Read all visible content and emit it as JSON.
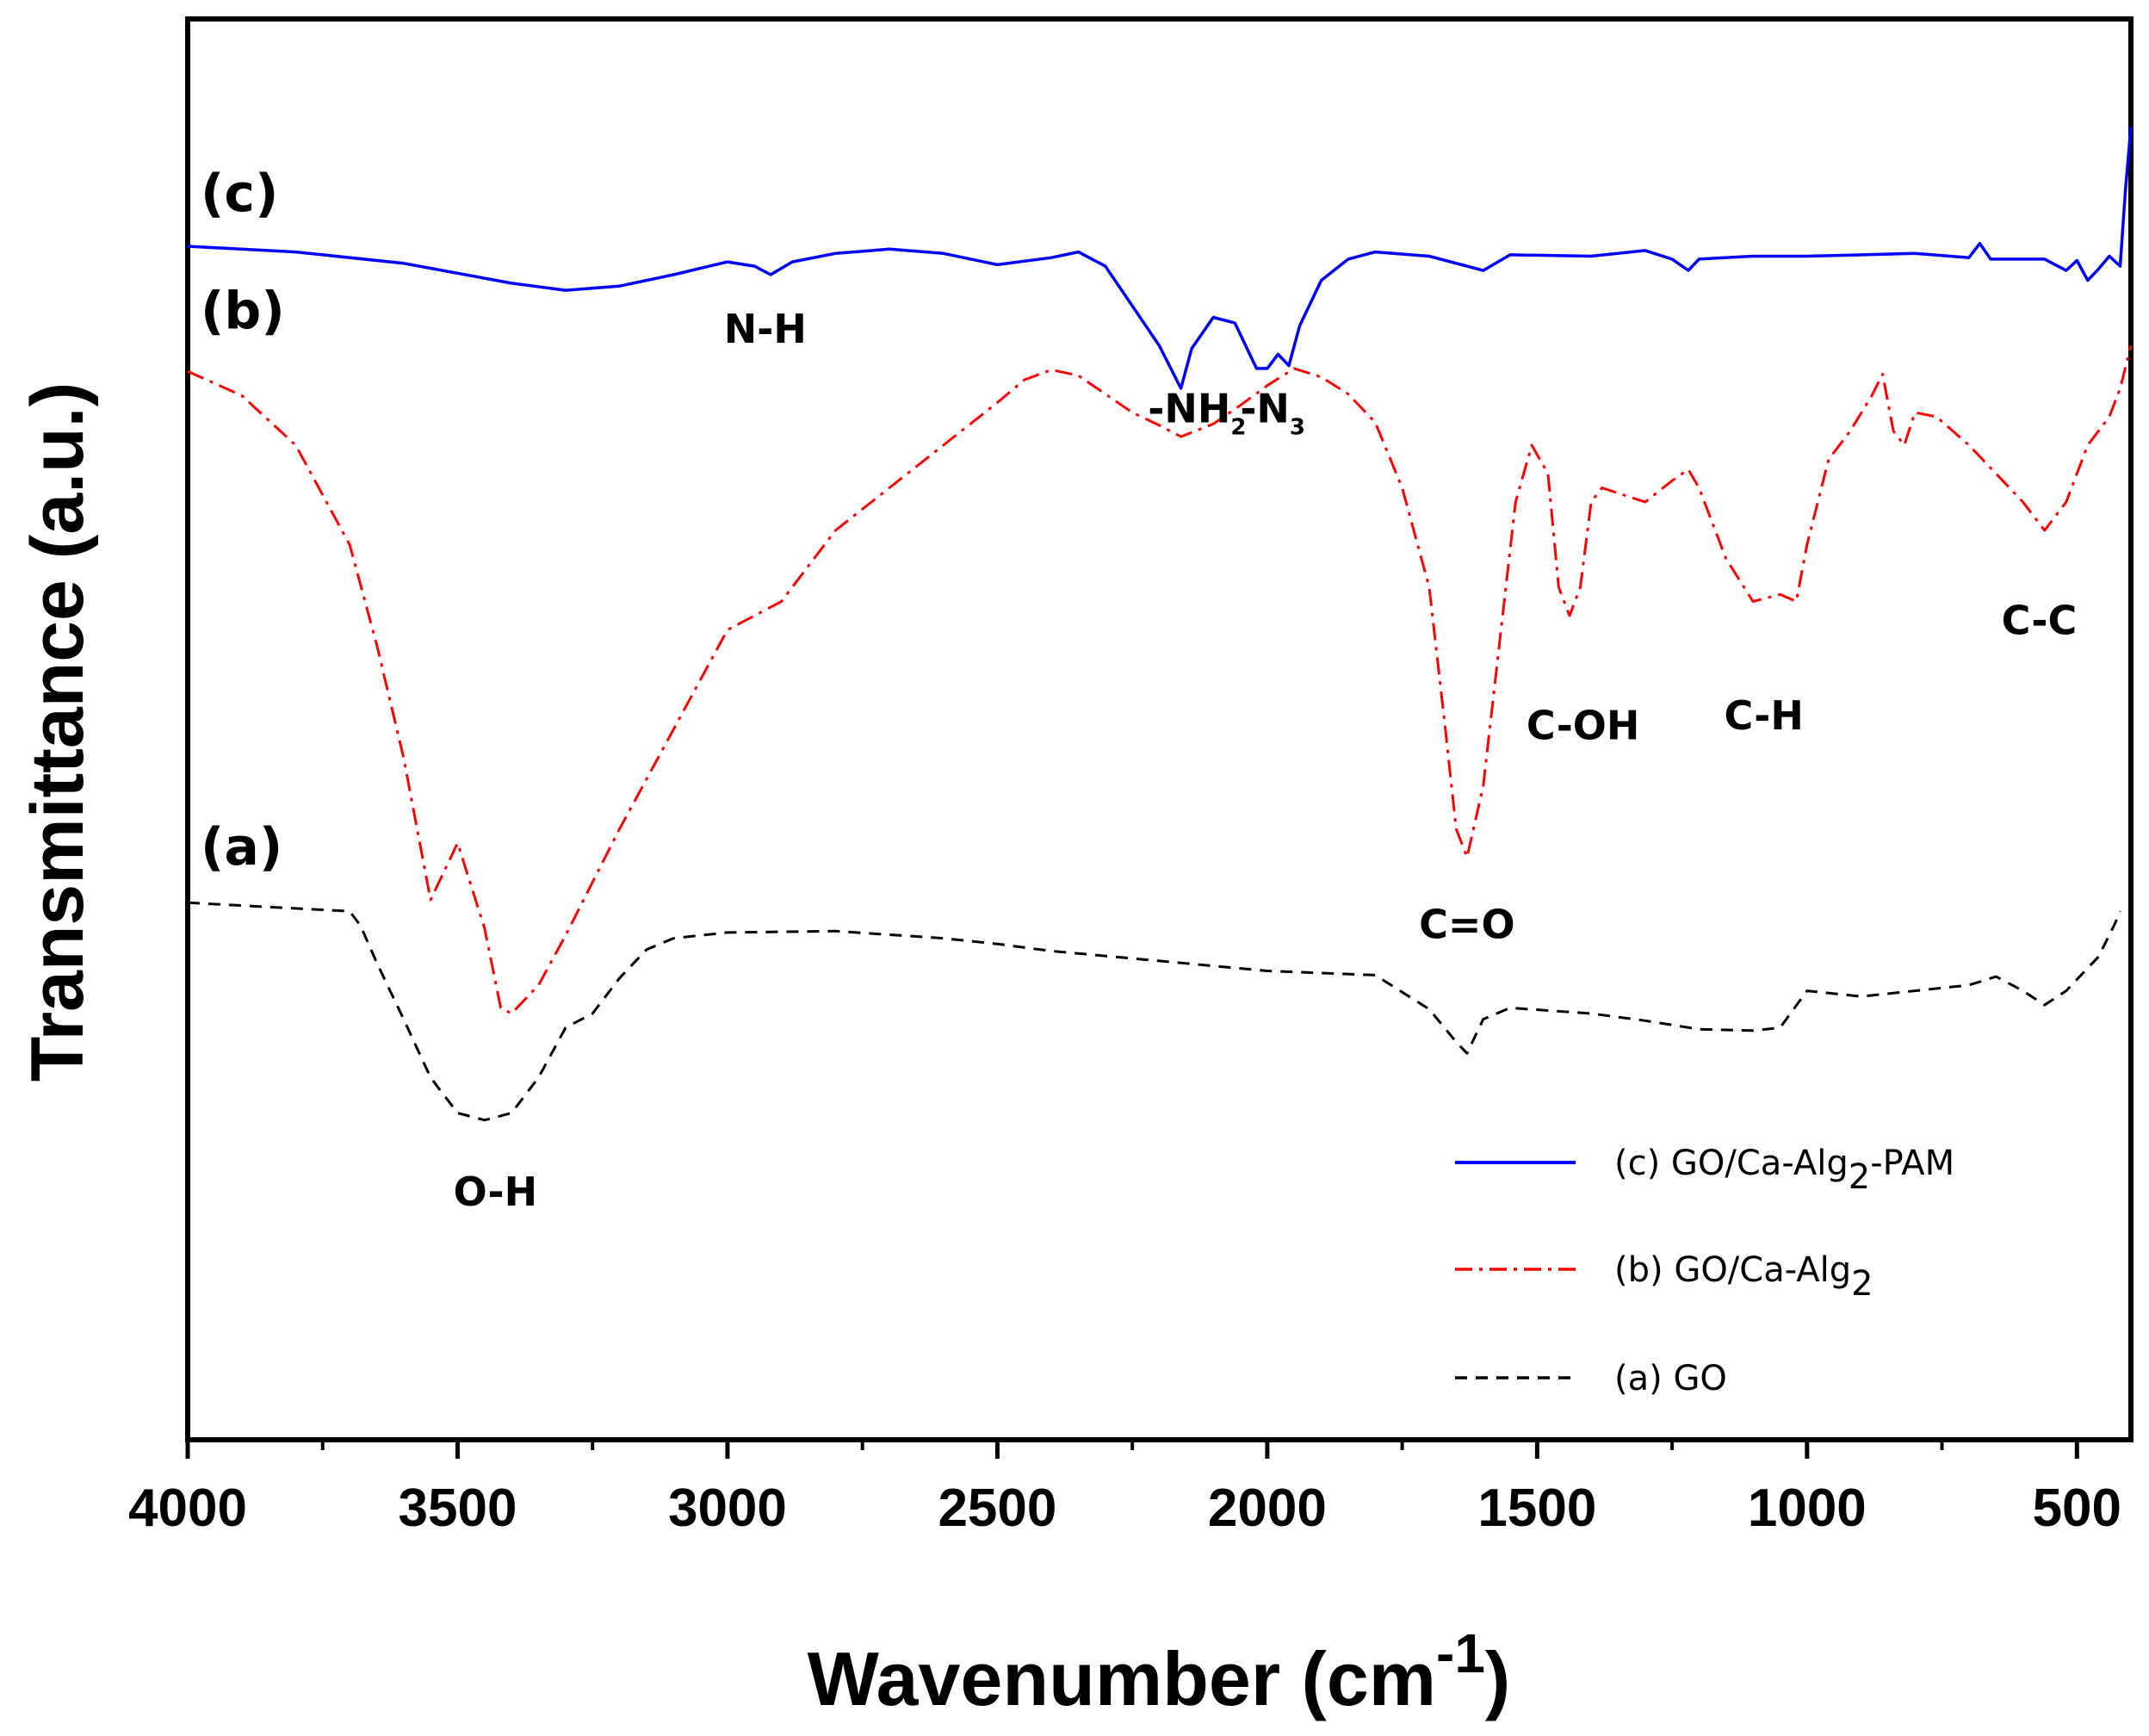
{
  "chart_data": {
    "type": "line",
    "title": "",
    "xlabel": "Wavenumber (cm",
    "xlabel_sup": "-1",
    "xlabel_close": ")",
    "ylabel": "Transmittance (a.u.)",
    "xlim": [
      4000,
      400
    ],
    "ylim": [
      0,
      100
    ],
    "x_reversed": true,
    "xticks": [
      4000,
      3500,
      3000,
      2500,
      2000,
      1500,
      1000,
      500
    ],
    "xtick_labels": [
      "4000",
      "3500",
      "3000",
      "2500",
      "2000",
      "1500",
      "1000",
      "500"
    ],
    "grid": false,
    "legend_position": "bottom-right",
    "series": [
      {
        "id": "c",
        "name": "(c) GO/Ca-Alg",
        "name_sub": "2",
        "name_suffix": "-PAM",
        "tag": "(c)",
        "color": "#0000ff",
        "dash": "solid",
        "points": [
          [
            4000,
            84.0
          ],
          [
            3800,
            83.6
          ],
          [
            3600,
            82.8
          ],
          [
            3400,
            81.4
          ],
          [
            3300,
            80.9
          ],
          [
            3200,
            81.2
          ],
          [
            3100,
            82.0
          ],
          [
            3000,
            82.9
          ],
          [
            2950,
            82.6
          ],
          [
            2920,
            82.0
          ],
          [
            2880,
            82.9
          ],
          [
            2800,
            83.5
          ],
          [
            2700,
            83.8
          ],
          [
            2600,
            83.5
          ],
          [
            2500,
            82.7
          ],
          [
            2400,
            83.2
          ],
          [
            2350,
            83.6
          ],
          [
            2300,
            82.6
          ],
          [
            2250,
            79.8
          ],
          [
            2200,
            77.0
          ],
          [
            2160,
            74.0
          ],
          [
            2140,
            76.8
          ],
          [
            2100,
            79.0
          ],
          [
            2060,
            78.6
          ],
          [
            2020,
            75.4
          ],
          [
            2000,
            75.4
          ],
          [
            1980,
            76.4
          ],
          [
            1960,
            75.6
          ],
          [
            1940,
            78.4
          ],
          [
            1900,
            81.6
          ],
          [
            1850,
            83.1
          ],
          [
            1800,
            83.6
          ],
          [
            1700,
            83.3
          ],
          [
            1600,
            82.3
          ],
          [
            1550,
            83.4
          ],
          [
            1400,
            83.3
          ],
          [
            1300,
            83.7
          ],
          [
            1250,
            83.1
          ],
          [
            1220,
            82.3
          ],
          [
            1200,
            83.1
          ],
          [
            1100,
            83.3
          ],
          [
            1000,
            83.3
          ],
          [
            800,
            83.5
          ],
          [
            700,
            83.2
          ],
          [
            680,
            84.2
          ],
          [
            660,
            83.1
          ],
          [
            560,
            83.1
          ],
          [
            520,
            82.3
          ],
          [
            500,
            83.0
          ],
          [
            480,
            81.6
          ],
          [
            460,
            82.4
          ],
          [
            440,
            83.3
          ],
          [
            420,
            82.6
          ],
          [
            410,
            88.0
          ],
          [
            400,
            92.4
          ]
        ],
        "label_points": [
          [
            4000,
            83.6
          ],
          [
            3999,
            84.4
          ],
          [
            3998,
            84.0
          ],
          [
            3996,
            83.4
          ]
        ]
      },
      {
        "id": "b",
        "name": "(b) GO/Ca-Alg",
        "name_sub": "2",
        "name_suffix": "",
        "tag": "(b)",
        "color": "#ff0000",
        "dash": "dashdot",
        "points": [
          [
            4000,
            75.2
          ],
          [
            3900,
            73.5
          ],
          [
            3800,
            70.0
          ],
          [
            3700,
            63.0
          ],
          [
            3650,
            56.0
          ],
          [
            3600,
            48.0
          ],
          [
            3550,
            38.0
          ],
          [
            3500,
            42.0
          ],
          [
            3450,
            36.0
          ],
          [
            3420,
            30.4
          ],
          [
            3400,
            30.0
          ],
          [
            3350,
            32.0
          ],
          [
            3300,
            35.5
          ],
          [
            3200,
            43.0
          ],
          [
            3100,
            50.0
          ],
          [
            3000,
            57.0
          ],
          [
            2900,
            59.0
          ],
          [
            2800,
            64.0
          ],
          [
            2700,
            67.0
          ],
          [
            2600,
            70.0
          ],
          [
            2500,
            73.0
          ],
          [
            2450,
            74.6
          ],
          [
            2400,
            75.3
          ],
          [
            2350,
            74.9
          ],
          [
            2300,
            73.6
          ],
          [
            2250,
            72.3
          ],
          [
            2200,
            71.4
          ],
          [
            2160,
            70.6
          ],
          [
            2100,
            71.5
          ],
          [
            2050,
            72.8
          ],
          [
            2000,
            74.2
          ],
          [
            1950,
            75.4
          ],
          [
            1900,
            74.8
          ],
          [
            1850,
            73.6
          ],
          [
            1800,
            71.6
          ],
          [
            1750,
            67.0
          ],
          [
            1700,
            60.0
          ],
          [
            1670,
            50.0
          ],
          [
            1650,
            43.0
          ],
          [
            1630,
            41.0
          ],
          [
            1600,
            46.0
          ],
          [
            1570,
            56.0
          ],
          [
            1540,
            66.0
          ],
          [
            1510,
            70.0
          ],
          [
            1480,
            68.0
          ],
          [
            1460,
            60.0
          ],
          [
            1440,
            58.0
          ],
          [
            1420,
            60.0
          ],
          [
            1400,
            66.0
          ],
          [
            1380,
            67.0
          ],
          [
            1300,
            66.0
          ],
          [
            1250,
            67.5
          ],
          [
            1220,
            68.3
          ],
          [
            1200,
            67.0
          ],
          [
            1150,
            62.0
          ],
          [
            1100,
            59.0
          ],
          [
            1050,
            59.5
          ],
          [
            1020,
            59.0
          ],
          [
            1000,
            63.0
          ],
          [
            960,
            69.0
          ],
          [
            920,
            71.0
          ],
          [
            880,
            73.5
          ],
          [
            860,
            75.0
          ],
          [
            840,
            71.0
          ],
          [
            820,
            70.0
          ],
          [
            800,
            72.3
          ],
          [
            760,
            72.0
          ],
          [
            700,
            70.0
          ],
          [
            650,
            68.0
          ],
          [
            600,
            66.0
          ],
          [
            560,
            64.0
          ],
          [
            520,
            66.0
          ],
          [
            480,
            70.0
          ],
          [
            440,
            72.0
          ],
          [
            420,
            74.0
          ],
          [
            400,
            77.0
          ]
        ]
      },
      {
        "id": "a",
        "name": "(a) GO",
        "name_sub": "",
        "name_suffix": "",
        "tag": "(a)",
        "color": "#000000",
        "dash": "dashed",
        "points": [
          [
            4000,
            37.8
          ],
          [
            3900,
            37.6
          ],
          [
            3700,
            37.2
          ],
          [
            3680,
            36.2
          ],
          [
            3650,
            33.6
          ],
          [
            3600,
            29.6
          ],
          [
            3550,
            25.5
          ],
          [
            3500,
            23.0
          ],
          [
            3450,
            22.5
          ],
          [
            3400,
            23.0
          ],
          [
            3350,
            25.5
          ],
          [
            3300,
            29.0
          ],
          [
            3250,
            30.0
          ],
          [
            3200,
            32.5
          ],
          [
            3150,
            34.5
          ],
          [
            3100,
            35.3
          ],
          [
            3000,
            35.7
          ],
          [
            2800,
            35.8
          ],
          [
            2600,
            35.3
          ],
          [
            2500,
            34.9
          ],
          [
            2400,
            34.4
          ],
          [
            2200,
            33.7
          ],
          [
            2000,
            33.0
          ],
          [
            1800,
            32.7
          ],
          [
            1700,
            30.3
          ],
          [
            1650,
            28.0
          ],
          [
            1630,
            27.2
          ],
          [
            1600,
            29.6
          ],
          [
            1550,
            30.4
          ],
          [
            1400,
            30.0
          ],
          [
            1300,
            29.5
          ],
          [
            1200,
            28.9
          ],
          [
            1100,
            28.8
          ],
          [
            1050,
            29.0
          ],
          [
            1000,
            31.6
          ],
          [
            900,
            31.2
          ],
          [
            800,
            31.6
          ],
          [
            700,
            32.0
          ],
          [
            650,
            32.6
          ],
          [
            600,
            31.6
          ],
          [
            560,
            30.6
          ],
          [
            520,
            31.6
          ],
          [
            460,
            34.0
          ],
          [
            430,
            36.3
          ],
          [
            420,
            37.2
          ]
        ]
      }
    ],
    "annotations": [
      {
        "text": "O-H",
        "x": 3430,
        "y": 16.5,
        "sub": ""
      },
      {
        "text": "N-H",
        "x": 2930,
        "y": 77.2,
        "sub": ""
      },
      {
        "text": "-NH",
        "x": 2130,
        "y": 71.6,
        "sub": "2"
      },
      {
        "text": "-N",
        "x": 1990,
        "y": 71.6,
        "sub": "3"
      },
      {
        "text": "C=O",
        "x": 1630,
        "y": 35.3,
        "sub": ""
      },
      {
        "text": "C-OH",
        "x": 1415,
        "y": 49.3,
        "sub": ""
      },
      {
        "text": "C-H",
        "x": 1080,
        "y": 50.0,
        "sub": ""
      },
      {
        "text": "C-C",
        "x": 570,
        "y": 56.7,
        "sub": ""
      }
    ]
  }
}
